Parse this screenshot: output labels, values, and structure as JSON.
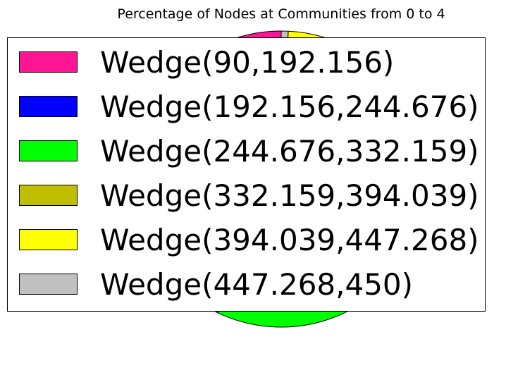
{
  "chart_data": {
    "type": "pie",
    "title": "Percentage of Nodes at Communities from 0 to 4",
    "legend_placement": "top",
    "slices": [
      {
        "label": "Wedge(90,192.156)",
        "start_angle": 90,
        "end_angle": 192.156,
        "color": "#ff1493"
      },
      {
        "label": "Wedge(192.156,244.676)",
        "start_angle": 192.156,
        "end_angle": 244.676,
        "color": "#0000ff"
      },
      {
        "label": "Wedge(244.676,332.159)",
        "start_angle": 244.676,
        "end_angle": 332.159,
        "color": "#00ff00"
      },
      {
        "label": "Wedge(332.159,394.039)",
        "start_angle": 332.159,
        "end_angle": 394.039,
        "color": "#bfbf00"
      },
      {
        "label": "Wedge(394.039,447.268)",
        "start_angle": 394.039,
        "end_angle": 447.268,
        "color": "#ffff00"
      },
      {
        "label": "Wedge(447.268,450)",
        "start_angle": 447.268,
        "end_angle": 450,
        "color": "#c0c0c0"
      }
    ]
  }
}
